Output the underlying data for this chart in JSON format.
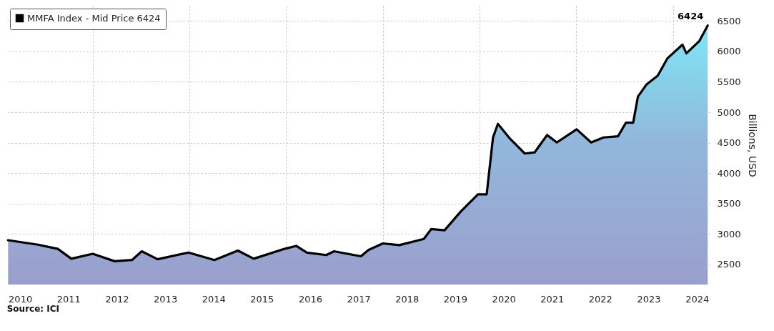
{
  "chart_data": {
    "type": "area",
    "ylabel": "Billions, USD",
    "annotations": [
      "Source: ICI"
    ],
    "xlim": [
      "2010-03-25",
      "2024-10-05"
    ],
    "xticks": [
      {
        "value": "2010-07-01",
        "label": "2010"
      },
      {
        "value": "2011-07-01",
        "label": "2011"
      },
      {
        "value": "2012-07-01",
        "label": "2012"
      },
      {
        "value": "2013-07-01",
        "label": "2013"
      },
      {
        "value": "2014-07-01",
        "label": "2014"
      },
      {
        "value": "2015-07-01",
        "label": "2015"
      },
      {
        "value": "2016-07-01",
        "label": "2016"
      },
      {
        "value": "2017-07-01",
        "label": "2017"
      },
      {
        "value": "2018-07-01",
        "label": "2018"
      },
      {
        "value": "2019-07-01",
        "label": "2019"
      },
      {
        "value": "2020-07-01",
        "label": "2020"
      },
      {
        "value": "2021-07-01",
        "label": "2021"
      },
      {
        "value": "2022-07-01",
        "label": "2022"
      },
      {
        "value": "2023-07-01",
        "label": "2023"
      },
      {
        "value": "2024-07-01",
        "label": "2024"
      },
      {
        "value": "2012-01-01",
        "label": null
      },
      {
        "value": "2014-01-01",
        "label": null
      },
      {
        "value": "2016-01-01",
        "label": null
      },
      {
        "value": "2018-01-01",
        "label": null
      },
      {
        "value": "2020-01-01",
        "label": null
      },
      {
        "value": "2022-01-01",
        "label": null
      },
      {
        "value": "2024-01-01",
        "label": null
      }
    ],
    "ylim": [
      2170,
      6750
    ],
    "yticks": [
      2500,
      3000,
      3500,
      4000,
      4500,
      5000,
      5500,
      6000,
      6500
    ],
    "grid": true,
    "legend": "top left",
    "x": [
      "2010-04-01",
      "2010-11-13",
      "2011-04-12",
      "2011-07-23",
      "2012-01-01",
      "2012-06-14",
      "2012-10-23",
      "2013-01-05",
      "2013-05-05",
      "2013-12-24",
      "2014-07-08",
      "2015-01-01",
      "2015-05-01",
      "2015-12-20",
      "2016-03-17",
      "2016-06-06",
      "2016-10-30",
      "2016-12-28",
      "2017-07-19",
      "2017-09-13",
      "2018-01-01",
      "2018-05-05",
      "2018-11-06",
      "2019-01-01",
      "2019-04-12",
      "2019-08-11",
      "2019-12-20",
      "2020-02-24",
      "2020-04-12",
      "2020-05-19",
      "2020-08-18",
      "2020-12-08",
      "2021-02-21",
      "2021-05-26",
      "2021-08-07",
      "2022-01-04",
      "2022-04-23",
      "2022-07-27",
      "2022-11-13",
      "2023-01-11",
      "2023-03-07",
      "2023-04-12",
      "2023-06-17",
      "2023-09-09",
      "2023-11-21",
      "2024-03-13",
      "2024-04-12",
      "2024-07-19",
      "2024-09-20"
    ],
    "series": [
      {
        "name": "MMFA Index - Mid Price 6424",
        "color": "#000000",
        "values": [
          2898,
          2825,
          2756,
          2594,
          2675,
          2553,
          2573,
          2716,
          2585,
          2695,
          2573,
          2728,
          2594,
          2756,
          2805,
          2695,
          2654,
          2716,
          2634,
          2736,
          2845,
          2817,
          2919,
          3081,
          3061,
          3366,
          3651,
          3651,
          4586,
          4810,
          4566,
          4322,
          4342,
          4626,
          4504,
          4720,
          4504,
          4586,
          4606,
          4829,
          4829,
          5257,
          5459,
          5602,
          5886,
          6110,
          5967,
          6171,
          6424
        ],
        "value_labels": [
          null,
          null,
          null,
          null,
          null,
          null,
          null,
          null,
          null,
          null,
          null,
          null,
          null,
          null,
          null,
          null,
          null,
          null,
          null,
          null,
          null,
          null,
          null,
          null,
          null,
          null,
          null,
          null,
          null,
          null,
          null,
          null,
          null,
          null,
          null,
          null,
          null,
          null,
          null,
          null,
          null,
          null,
          null,
          null,
          null,
          null,
          null,
          null,
          "6424"
        ]
      }
    ]
  }
}
